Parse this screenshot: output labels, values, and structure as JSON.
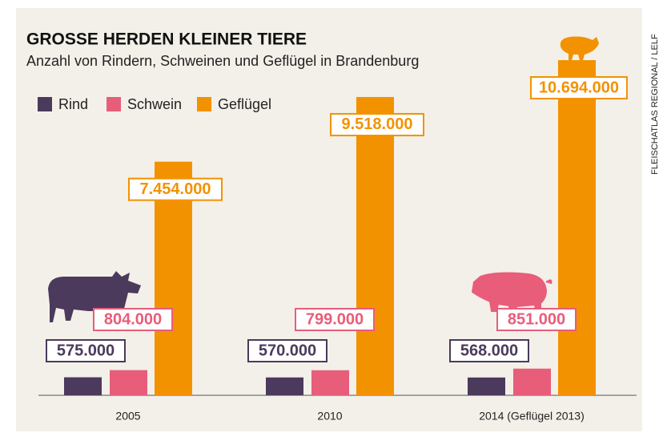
{
  "chart_data": {
    "type": "bar",
    "title": "GROSSE HERDEN KLEINER TIERE",
    "subtitle": "Anzahl von Rindern, Schweinen und Geflügel in Brandenburg",
    "source": "FLEISCHATLAS REGIONAL / LELF",
    "categories": [
      "2005",
      "2010",
      "2014 (Geflügel 2013)"
    ],
    "series": [
      {
        "name": "Rind",
        "color": "#4b3a5c",
        "values": [
          575000,
          570000,
          568000
        ],
        "value_labels": [
          "575.000",
          "570.000",
          "568.000"
        ]
      },
      {
        "name": "Schwein",
        "color": "#e85d7a",
        "values": [
          804000,
          799000,
          851000
        ],
        "value_labels": [
          "804.000",
          "799.000",
          "851.000"
        ]
      },
      {
        "name": "Geflügel",
        "color": "#f39200",
        "values": [
          7454000,
          9518000,
          10694000
        ],
        "value_labels": [
          "7.454.000",
          "9.518.000",
          "10.694.000"
        ]
      }
    ]
  }
}
